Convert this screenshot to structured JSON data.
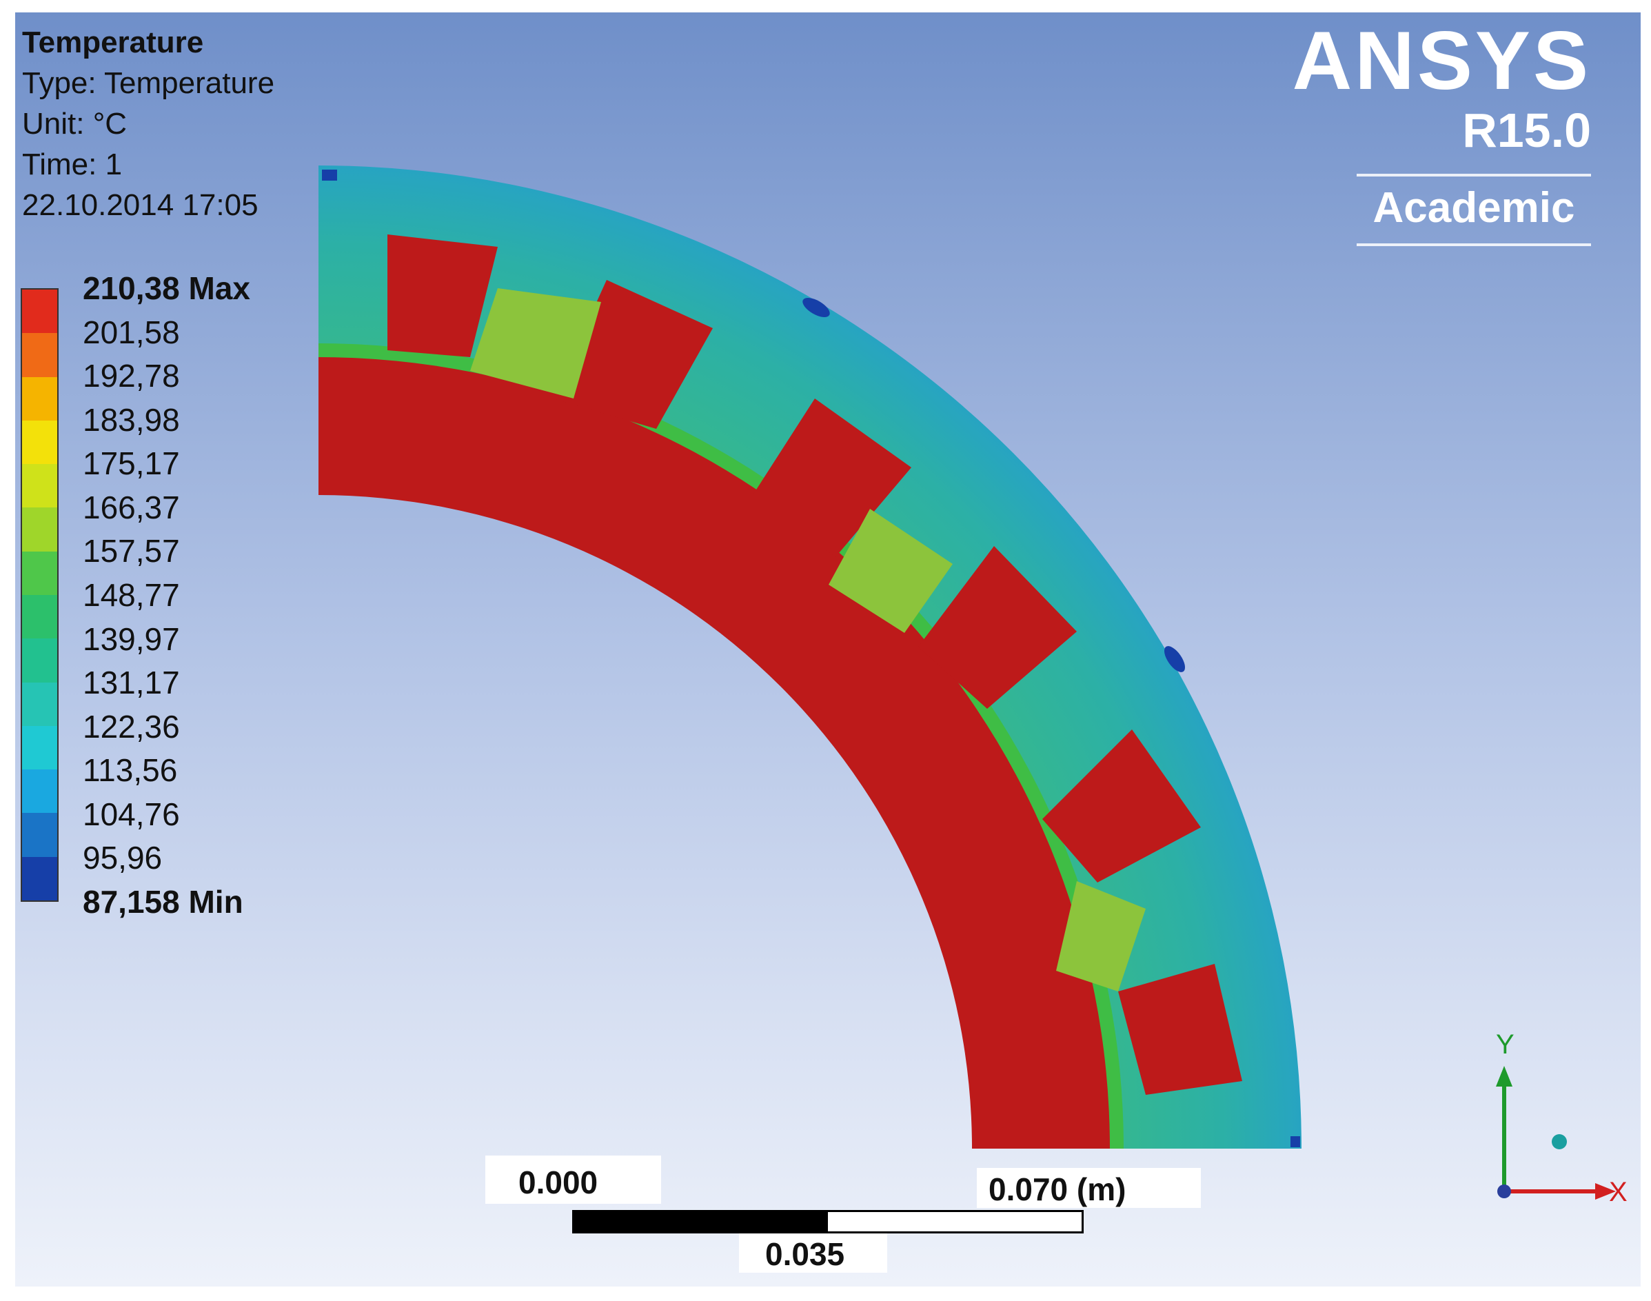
{
  "info": {
    "title": "Temperature",
    "type_line": "Type: Temperature",
    "unit_line": "Unit: °C",
    "time_line": "Time: 1",
    "datetime": "22.10.2014 17:05"
  },
  "legend": {
    "labels": [
      "210,38 Max",
      "201,58",
      "192,78",
      "183,98",
      "175,17",
      "166,37",
      "157,57",
      "148,77",
      "139,97",
      "131,17",
      "122,36",
      "113,56",
      "104,76",
      "95,96",
      "87,158 Min"
    ],
    "colors": [
      "#e12b1c",
      "#f06a16",
      "#f5b400",
      "#f3e10a",
      "#cfe21a",
      "#9fd62a",
      "#4fc74a",
      "#2cc06b",
      "#22c18f",
      "#26c4b4",
      "#1fc9d3",
      "#1aa8e0",
      "#1a74c6",
      "#163fa8"
    ]
  },
  "logo": {
    "brand": "ANSYS",
    "version": "R15.0",
    "edition": "Academic"
  },
  "scale": {
    "left": "0.000",
    "mid": "0.035",
    "right": "0.070 (m)"
  },
  "triad": {
    "x_label": "X",
    "y_label": "Y"
  },
  "colors": {
    "hot_red": "#bd1a1a",
    "outer_yoke": "#2fb59a",
    "slot_green": "#3db83e",
    "tooth_light": "#8cc43c",
    "axis_x": "#d22020",
    "axis_y": "#1e9a2c",
    "node_dot": "#1a9fa0"
  }
}
